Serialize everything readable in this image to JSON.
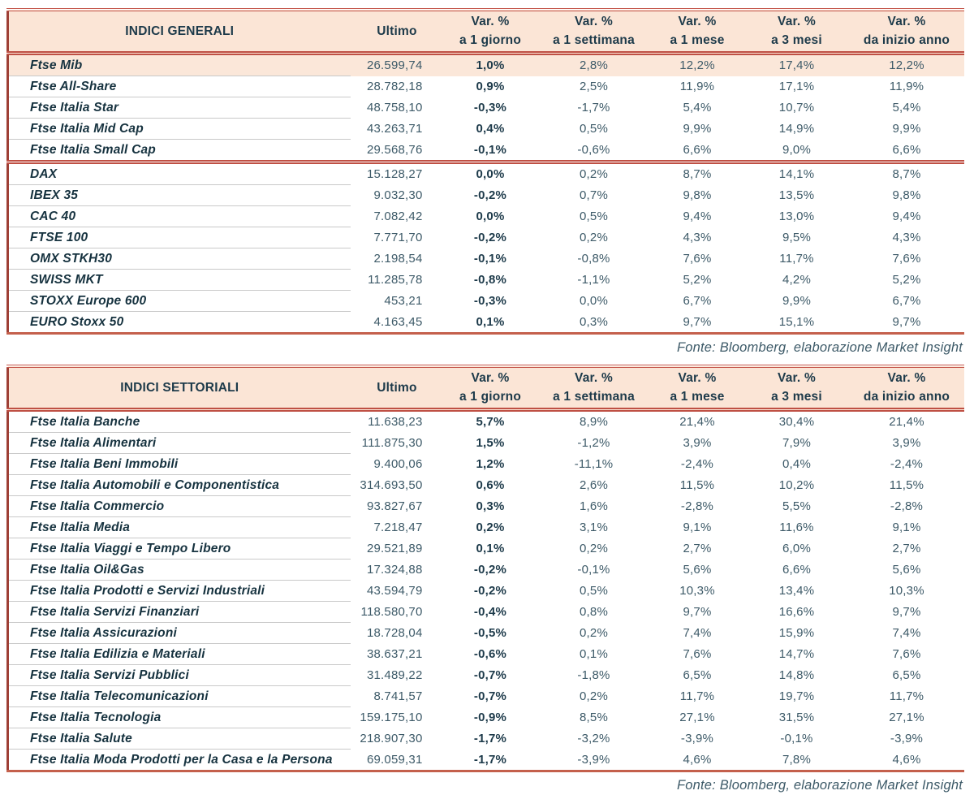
{
  "colors": {
    "header_bg": "#fbe5d6",
    "highlight_row_bg": "#fbe7d9",
    "accent_double_line": "#bf5044",
    "table_left_border": "#9e3f35",
    "table_bottom_border": "#c4604c",
    "row_separator": "#c9c9c9",
    "text_dark": "#1d3a4a",
    "text_value": "#3d5a68"
  },
  "tables": [
    {
      "id": "indici-generali",
      "title": "INDICI GENERALI",
      "columns": {
        "ultimo": "Ultimo",
        "var_label": "Var. %",
        "periods": [
          "a 1 giorno",
          "a 1 settimana",
          "a 1 mese",
          "a 3 mesi",
          "da inizio anno"
        ]
      },
      "rows": [
        {
          "name": "Ftse Mib",
          "ultimo": "26.599,74",
          "d1": "1,0%",
          "w1": "2,8%",
          "m1": "12,2%",
          "m3": "17,4%",
          "ytd": "12,2%",
          "highlight": true
        },
        {
          "name": "Ftse All-Share",
          "ultimo": "28.782,18",
          "d1": "0,9%",
          "w1": "2,5%",
          "m1": "11,9%",
          "m3": "17,1%",
          "ytd": "11,9%"
        },
        {
          "name": "Ftse Italia Star",
          "ultimo": "48.758,10",
          "d1": "-0,3%",
          "w1": "-1,7%",
          "m1": "5,4%",
          "m3": "10,7%",
          "ytd": "5,4%"
        },
        {
          "name": "Ftse Italia Mid Cap",
          "ultimo": "43.263,71",
          "d1": "0,4%",
          "w1": "0,5%",
          "m1": "9,9%",
          "m3": "14,9%",
          "ytd": "9,9%"
        },
        {
          "name": "Ftse Italia Small Cap",
          "ultimo": "29.568,76",
          "d1": "-0,1%",
          "w1": "-0,6%",
          "m1": "6,6%",
          "m3": "9,0%",
          "ytd": "6,6%"
        },
        {
          "name": "DAX",
          "ultimo": "15.128,27",
          "d1": "0,0%",
          "w1": "0,2%",
          "m1": "8,7%",
          "m3": "14,1%",
          "ytd": "8,7%",
          "section_start": true
        },
        {
          "name": "IBEX 35",
          "ultimo": "9.032,30",
          "d1": "-0,2%",
          "w1": "0,7%",
          "m1": "9,8%",
          "m3": "13,5%",
          "ytd": "9,8%"
        },
        {
          "name": "CAC 40",
          "ultimo": "7.082,42",
          "d1": "0,0%",
          "w1": "0,5%",
          "m1": "9,4%",
          "m3": "13,0%",
          "ytd": "9,4%"
        },
        {
          "name": "FTSE 100",
          "ultimo": "7.771,70",
          "d1": "-0,2%",
          "w1": "0,2%",
          "m1": "4,3%",
          "m3": "9,5%",
          "ytd": "4,3%"
        },
        {
          "name": "OMX STKH30",
          "ultimo": "2.198,54",
          "d1": "-0,1%",
          "w1": "-0,8%",
          "m1": "7,6%",
          "m3": "11,7%",
          "ytd": "7,6%"
        },
        {
          "name": "SWISS MKT",
          "ultimo": "11.285,78",
          "d1": "-0,8%",
          "w1": "-1,1%",
          "m1": "5,2%",
          "m3": "4,2%",
          "ytd": "5,2%"
        },
        {
          "name": "STOXX Europe 600",
          "ultimo": "453,21",
          "d1": "-0,3%",
          "w1": "0,0%",
          "m1": "6,7%",
          "m3": "9,9%",
          "ytd": "6,7%"
        },
        {
          "name": "EURO Stoxx 50",
          "ultimo": "4.163,45",
          "d1": "0,1%",
          "w1": "0,3%",
          "m1": "9,7%",
          "m3": "15,1%",
          "ytd": "9,7%"
        }
      ],
      "source": "Fonte: Bloomberg, elaborazione Market Insight"
    },
    {
      "id": "indici-settoriali",
      "title": "INDICI SETTORIALI",
      "columns": {
        "ultimo": "Ultimo",
        "var_label": "Var. %",
        "periods": [
          "a 1 giorno",
          "a 1 settimana",
          "a 1 mese",
          "a 3 mesi",
          "da inizio anno"
        ]
      },
      "rows": [
        {
          "name": "Ftse Italia Banche",
          "ultimo": "11.638,23",
          "d1": "5,7%",
          "w1": "8,9%",
          "m1": "21,4%",
          "m3": "30,4%",
          "ytd": "21,4%"
        },
        {
          "name": "Ftse Italia Alimentari",
          "ultimo": "111.875,30",
          "d1": "1,5%",
          "w1": "-1,2%",
          "m1": "3,9%",
          "m3": "7,9%",
          "ytd": "3,9%"
        },
        {
          "name": "Ftse Italia Beni Immobili",
          "ultimo": "9.400,06",
          "d1": "1,2%",
          "w1": "-11,1%",
          "m1": "-2,4%",
          "m3": "0,4%",
          "ytd": "-2,4%"
        },
        {
          "name": "Ftse Italia Automobili e Componentistica",
          "ultimo": "314.693,50",
          "d1": "0,6%",
          "w1": "2,6%",
          "m1": "11,5%",
          "m3": "10,2%",
          "ytd": "11,5%"
        },
        {
          "name": "Ftse Italia Commercio",
          "ultimo": "93.827,67",
          "d1": "0,3%",
          "w1": "1,6%",
          "m1": "-2,8%",
          "m3": "5,5%",
          "ytd": "-2,8%"
        },
        {
          "name": "Ftse Italia Media",
          "ultimo": "7.218,47",
          "d1": "0,2%",
          "w1": "3,1%",
          "m1": "9,1%",
          "m3": "11,6%",
          "ytd": "9,1%"
        },
        {
          "name": "Ftse Italia Viaggi e Tempo Libero",
          "ultimo": "29.521,89",
          "d1": "0,1%",
          "w1": "0,2%",
          "m1": "2,7%",
          "m3": "6,0%",
          "ytd": "2,7%"
        },
        {
          "name": "Ftse Italia Oil&Gas",
          "ultimo": "17.324,88",
          "d1": "-0,2%",
          "w1": "-0,1%",
          "m1": "5,6%",
          "m3": "6,6%",
          "ytd": "5,6%"
        },
        {
          "name": "Ftse Italia Prodotti e Servizi Industriali",
          "ultimo": "43.594,79",
          "d1": "-0,2%",
          "w1": "0,5%",
          "m1": "10,3%",
          "m3": "13,4%",
          "ytd": "10,3%"
        },
        {
          "name": "Ftse Italia Servizi Finanziari",
          "ultimo": "118.580,70",
          "d1": "-0,4%",
          "w1": "0,8%",
          "m1": "9,7%",
          "m3": "16,6%",
          "ytd": "9,7%"
        },
        {
          "name": "Ftse Italia Assicurazioni",
          "ultimo": "18.728,04",
          "d1": "-0,5%",
          "w1": "0,2%",
          "m1": "7,4%",
          "m3": "15,9%",
          "ytd": "7,4%"
        },
        {
          "name": "Ftse Italia Edilizia e Materiali",
          "ultimo": "38.637,21",
          "d1": "-0,6%",
          "w1": "0,1%",
          "m1": "7,6%",
          "m3": "14,7%",
          "ytd": "7,6%"
        },
        {
          "name": "Ftse Italia Servizi Pubblici",
          "ultimo": "31.489,22",
          "d1": "-0,7%",
          "w1": "-1,8%",
          "m1": "6,5%",
          "m3": "14,8%",
          "ytd": "6,5%"
        },
        {
          "name": "Ftse Italia Telecomunicazioni",
          "ultimo": "8.741,57",
          "d1": "-0,7%",
          "w1": "0,2%",
          "m1": "11,7%",
          "m3": "19,7%",
          "ytd": "11,7%"
        },
        {
          "name": "Ftse Italia Tecnologia",
          "ultimo": "159.175,10",
          "d1": "-0,9%",
          "w1": "8,5%",
          "m1": "27,1%",
          "m3": "31,5%",
          "ytd": "27,1%"
        },
        {
          "name": "Ftse Italia Salute",
          "ultimo": "218.907,30",
          "d1": "-1,7%",
          "w1": "-3,2%",
          "m1": "-3,9%",
          "m3": "-0,1%",
          "ytd": "-3,9%"
        },
        {
          "name": "Ftse Italia Moda Prodotti per la Casa e la Persona",
          "ultimo": "69.059,31",
          "d1": "-1,7%",
          "w1": "-3,9%",
          "m1": "4,6%",
          "m3": "7,8%",
          "ytd": "4,6%"
        }
      ],
      "source": "Fonte: Bloomberg, elaborazione Market Insight"
    }
  ]
}
